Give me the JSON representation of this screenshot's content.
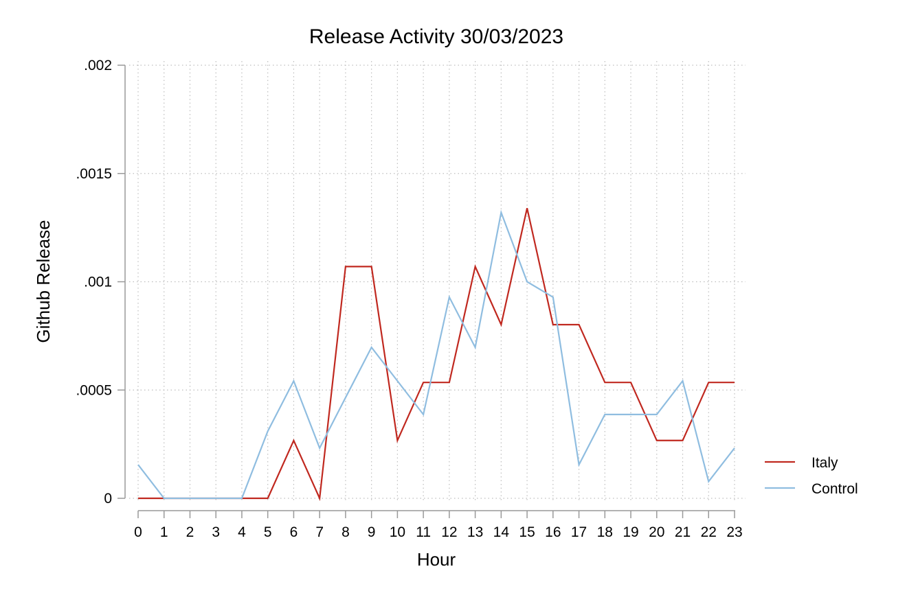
{
  "chart_data": {
    "type": "line",
    "title": "Release Activity 30/03/2023",
    "xlabel": "Hour",
    "ylabel": "Github Release",
    "x": [
      0,
      1,
      2,
      3,
      4,
      5,
      6,
      7,
      8,
      9,
      10,
      11,
      12,
      13,
      14,
      15,
      16,
      17,
      18,
      19,
      20,
      21,
      22,
      23
    ],
    "xticks": [
      "0",
      "1",
      "2",
      "3",
      "4",
      "5",
      "6",
      "7",
      "8",
      "9",
      "10",
      "11",
      "12",
      "13",
      "14",
      "15",
      "16",
      "17",
      "18",
      "19",
      "20",
      "21",
      "22",
      "23"
    ],
    "ylim": [
      0,
      0.002
    ],
    "yticks": [
      0,
      0.0005,
      0.001,
      0.0015,
      0.002
    ],
    "ytick_labels": [
      "0",
      ".0005",
      ".001",
      ".0015",
      ".002"
    ],
    "grid": true,
    "legend_position": "right",
    "series": [
      {
        "name": "Italy",
        "color": "#c0281f",
        "values": [
          0,
          0,
          0,
          0,
          0,
          0,
          0.000267,
          0,
          0.00107,
          0.00107,
          0.000267,
          0.000535,
          0.000535,
          0.00107,
          0.000802,
          0.00134,
          0.000802,
          0.000802,
          0.000535,
          0.000535,
          0.000267,
          0.000267,
          0.000535,
          0.000535
        ]
      },
      {
        "name": "Control",
        "color": "#8fbde0",
        "values": [
          0.000155,
          0,
          0,
          0,
          0,
          0.00031,
          0.000542,
          0.000232,
          0.000465,
          0.000697,
          0.000542,
          0.000387,
          0.000929,
          0.000697,
          0.00132,
          0.001,
          0.000929,
          0.000155,
          0.000387,
          0.000387,
          0.000387,
          0.000542,
          7.74e-05,
          0.000232
        ]
      }
    ]
  }
}
